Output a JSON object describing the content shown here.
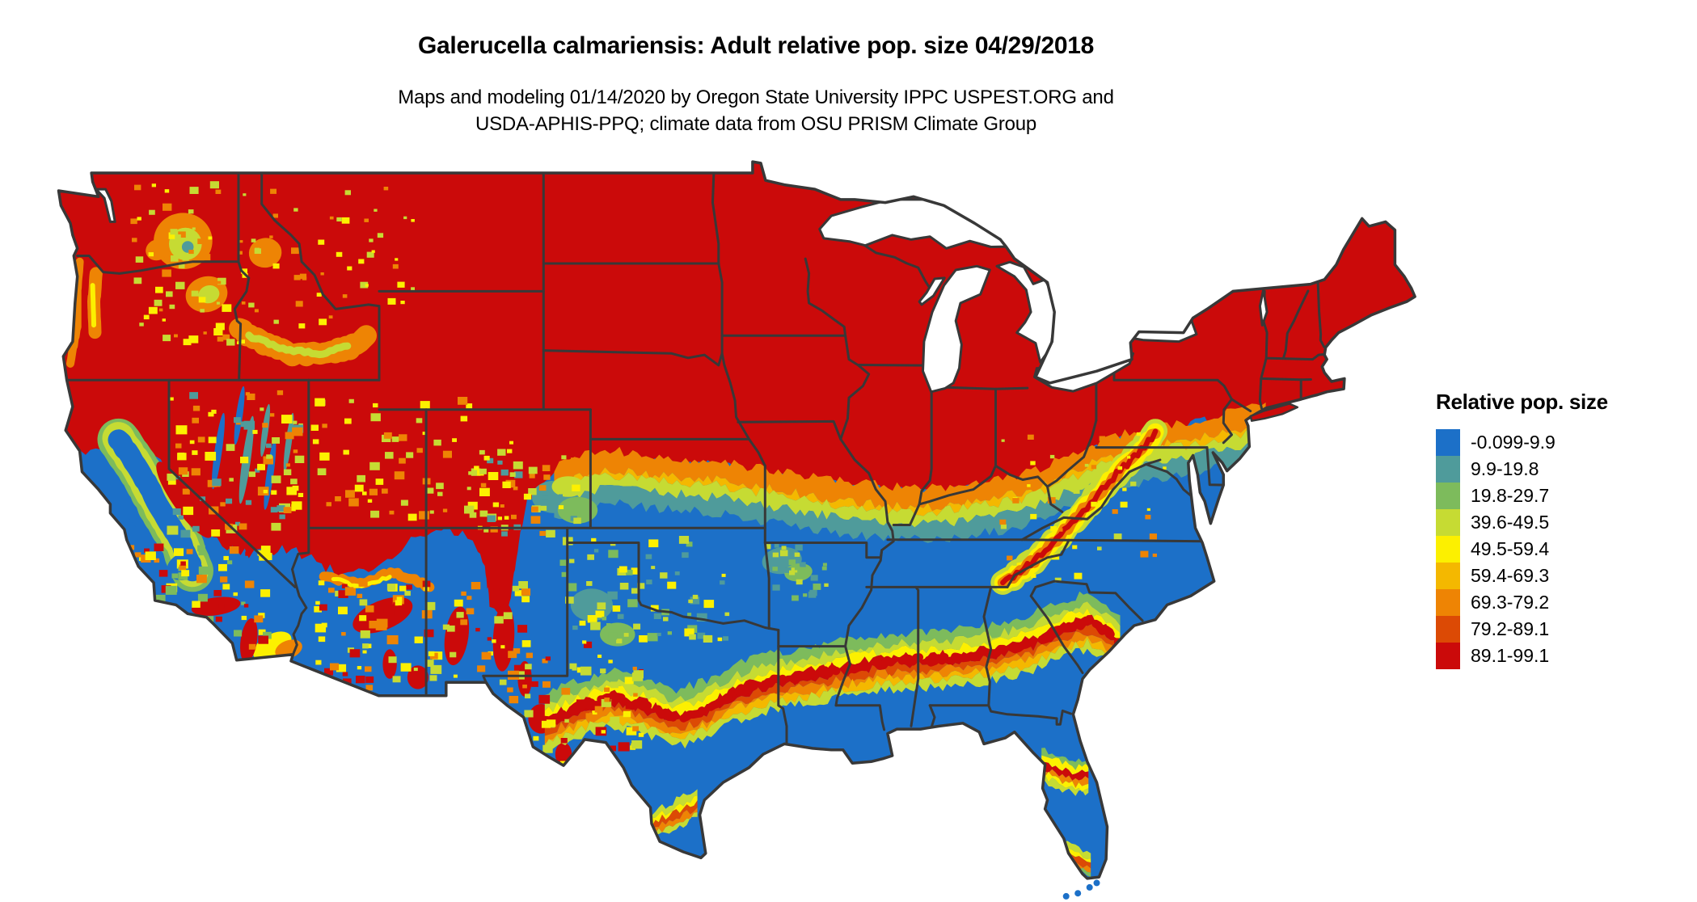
{
  "figure": {
    "title": "Galerucella calmariensis: Adult relative pop. size 04/29/2018",
    "subtitle_line1": "Maps and modeling 01/14/2020 by Oregon State University IPPC USPEST.ORG and",
    "subtitle_line2": "USDA-APHIS-PPQ; climate data from OSU PRISM Climate Group"
  },
  "legend": {
    "title": "Relative pop. size",
    "items": [
      {
        "label": "-0.099-9.9",
        "color": "#1C70C8"
      },
      {
        "label": "9.9-19.8",
        "color": "#4F9B9B"
      },
      {
        "label": "19.8-29.7",
        "color": "#7DBB5C"
      },
      {
        "label": "39.6-49.5",
        "color": "#C6DB33"
      },
      {
        "label": "49.5-59.4",
        "color": "#FCF000"
      },
      {
        "label": "59.4-69.3",
        "color": "#F4B800"
      },
      {
        "label": "69.3-79.2",
        "color": "#EE8404"
      },
      {
        "label": "79.2-89.1",
        "color": "#DC4A05"
      },
      {
        "label": "89.1-99.1",
        "color": "#CB0A0A"
      }
    ]
  },
  "map": {
    "palette": {
      "blue": "#1C70C8",
      "teal": "#4F9B9B",
      "green": "#7DBB5C",
      "yelgreen": "#C6DB33",
      "yellow": "#FCF000",
      "gold": "#F4B800",
      "orange": "#EE8404",
      "redorange": "#DC4A05",
      "red": "#CB0A0A",
      "border": "#383838",
      "lake": "#FFFFFF",
      "background": "#FFFFFF"
    }
  },
  "chart_data": {
    "type": "heatmap",
    "title": "Galerucella calmariensis: Adult relative pop. size 04/29/2018",
    "subtitle": "Maps and modeling 01/14/2020 by Oregon State University IPPC USPEST.ORG and USDA-APHIS-PPQ; climate data from OSU PRISM Climate Group",
    "legend_title": "Relative pop. size",
    "legend_position": "right",
    "region": "Contiguous United States with state boundaries",
    "categories": [
      "-0.099-9.9",
      "9.9-19.8",
      "19.8-29.7",
      "39.6-49.5",
      "49.5-59.4",
      "59.4-69.3",
      "69.3-79.2",
      "79.2-89.1",
      "89.1-99.1"
    ],
    "colors": [
      "#1C70C8",
      "#4F9B9B",
      "#7DBB5C",
      "#C6DB33",
      "#FCF000",
      "#F4B800",
      "#EE8404",
      "#DC4A05",
      "#CB0A0A"
    ],
    "value_range": [
      -0.099,
      99.1
    ],
    "pattern": {
      "high_band_89_99": "entire northern US, Rockies, Sierra Nevada, Cascades and Appalachian ridges",
      "transition_band": "orange-yellow-green-teal gradient across Kansas, Missouri, southern Illinois/Indiana/Ohio to New Jersey",
      "low_band_0_10": "southern plains, Gulf coast, southeast coastal plain, California Central Valley, desert Southwest",
      "secondary_band": "narrow yellow/red wavy band from central Texas through Mississippi, Alabama, Georgia to South Carolina, plus central and southern Florida"
    }
  }
}
